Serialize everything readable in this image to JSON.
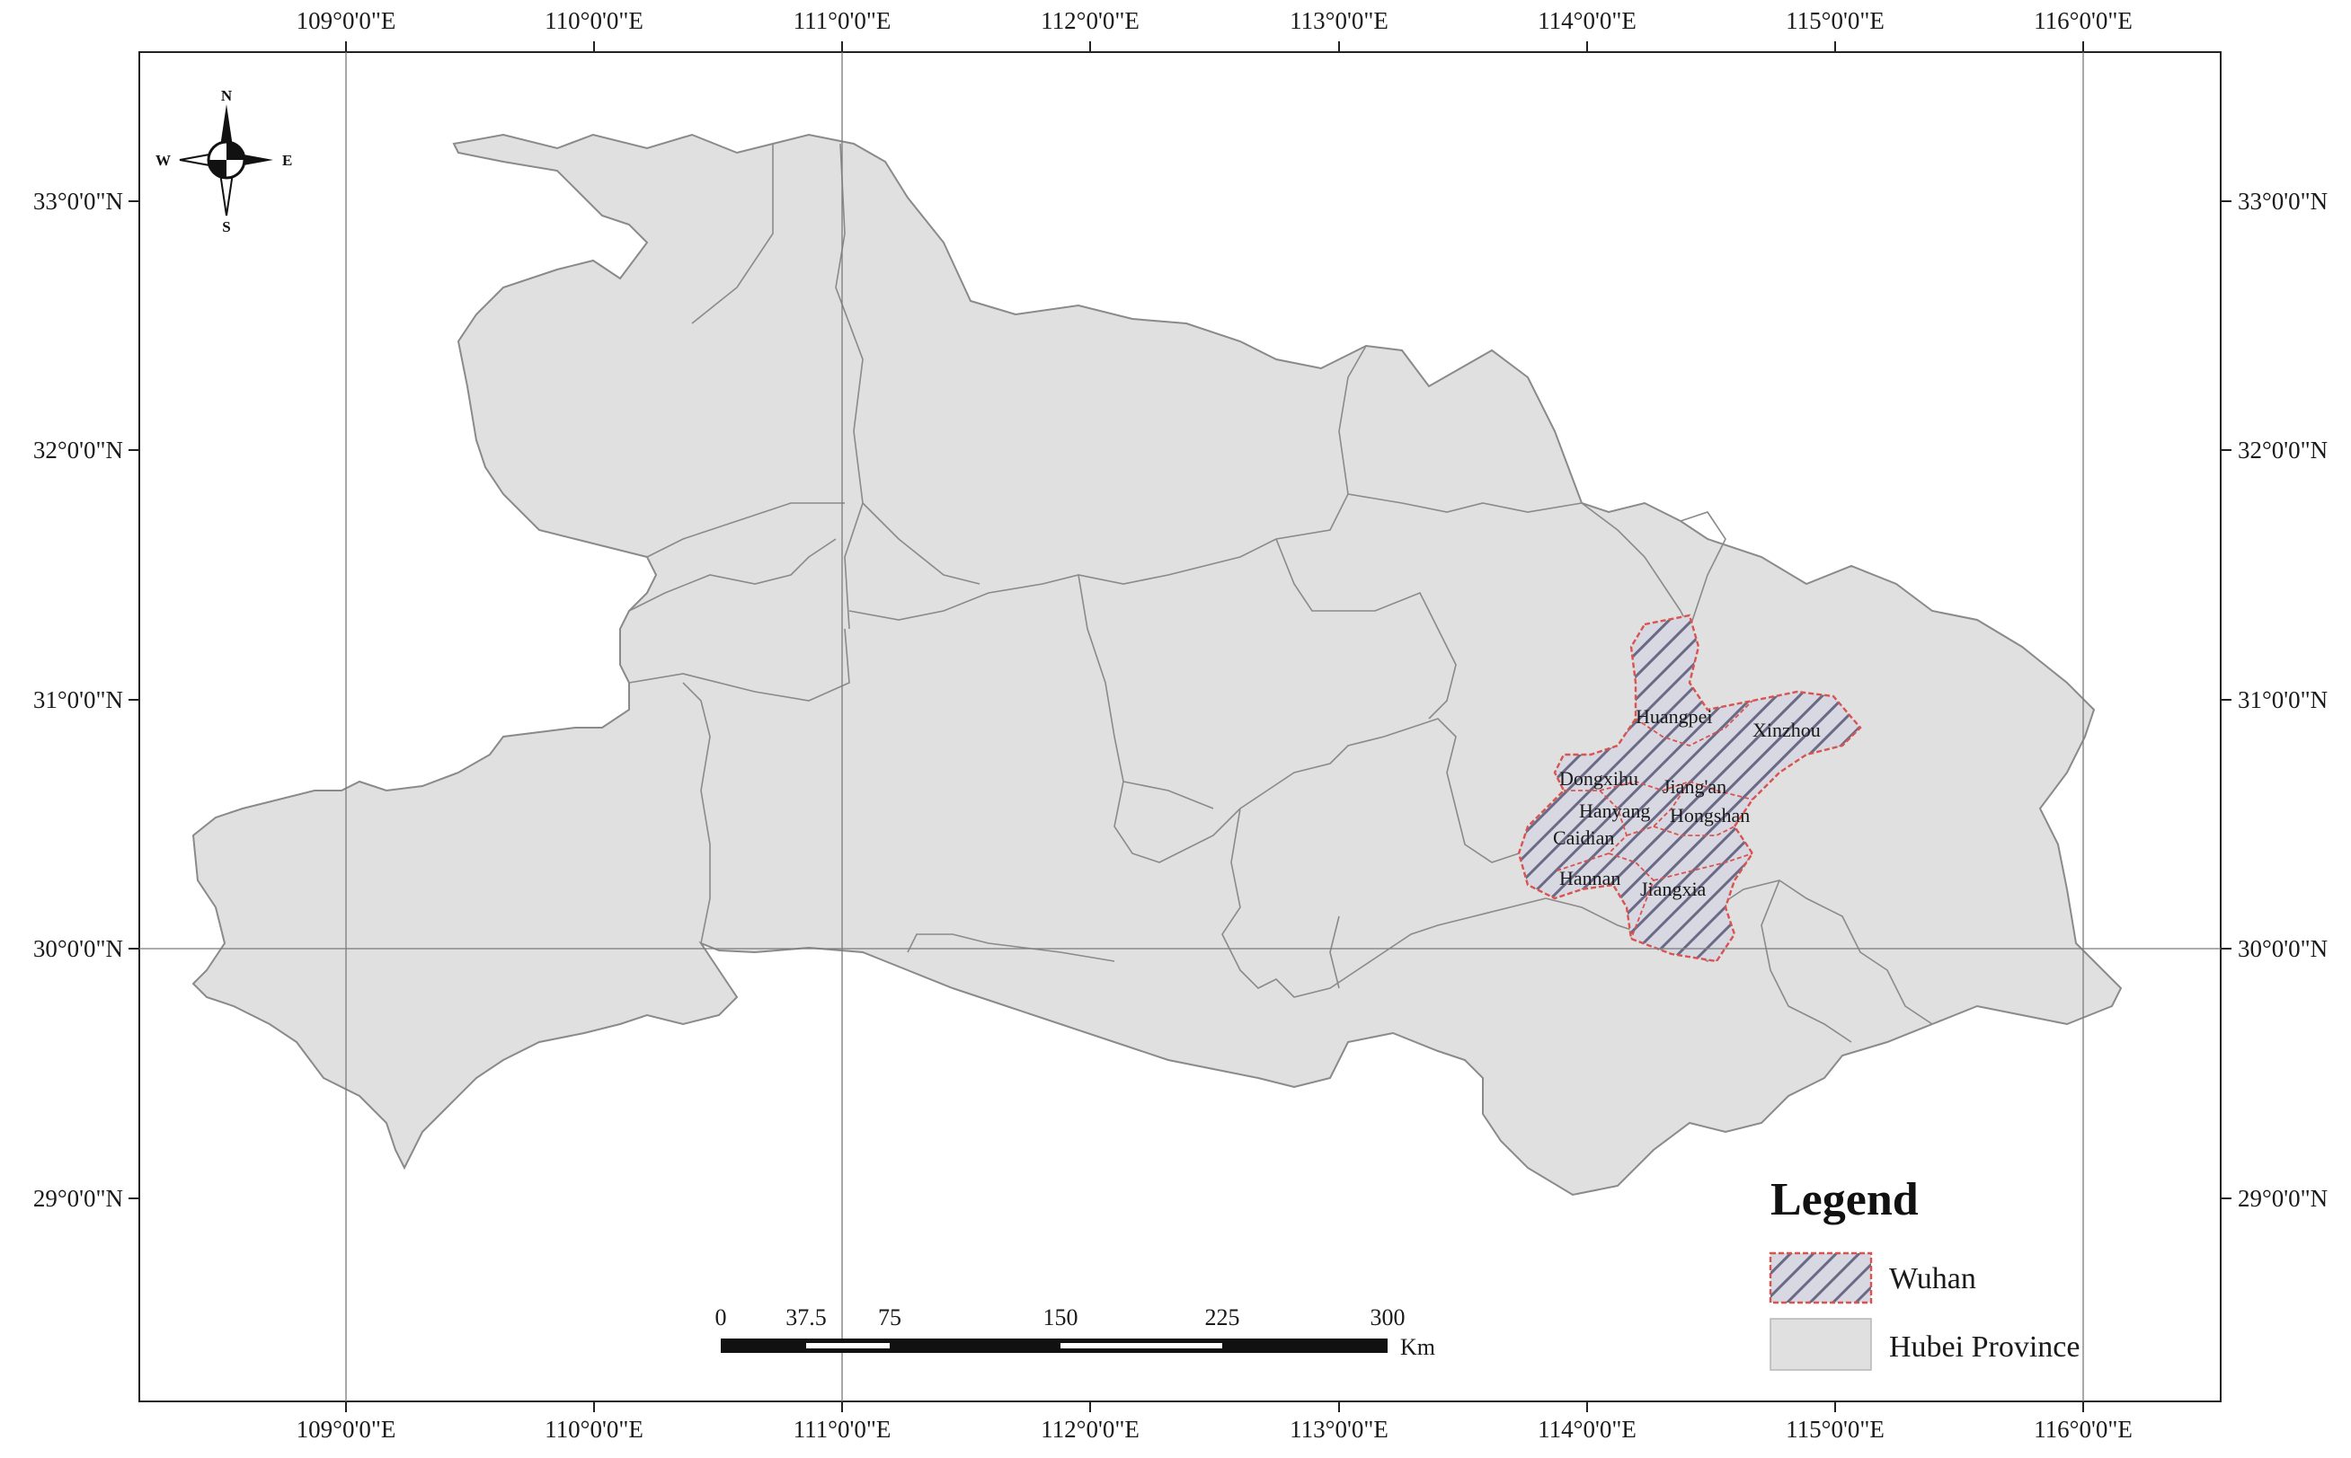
{
  "map": {
    "top_lon_labels": [
      "109°0'0\"E",
      "110°0'0\"E",
      "111°0'0\"E",
      "112°0'0\"E",
      "113°0'0\"E",
      "114°0'0\"E",
      "115°0'0\"E",
      "116°0'0\"E"
    ],
    "bottom_lon_labels": [
      "109°0'0\"E",
      "110°0'0\"E",
      "111°0'0\"E",
      "112°0'0\"E",
      "113°0'0\"E",
      "114°0'0\"E",
      "115°0'0\"E",
      "116°0'0\"E"
    ],
    "left_lat_labels": [
      "33°0'0\"N",
      "32°0'0\"N",
      "31°0'0\"N",
      "30°0'0\"N",
      "29°0'0\"N"
    ],
    "right_lat_labels": [
      "33°0'0\"N",
      "32°0'0\"N",
      "31°0'0\"N",
      "30°0'0\"N",
      "29°0'0\"N"
    ],
    "districts": [
      "Huangpei",
      "Xinzhou",
      "Dongxihu",
      "Jiang'an",
      "Hanyang",
      "Hongshan",
      "Caidian",
      "Hannan",
      "Jiangxia"
    ],
    "compass": {
      "n": "N",
      "s": "S",
      "e": "E",
      "w": "W"
    },
    "scale_bar": {
      "labels": [
        "0",
        "37.5",
        "75",
        "150",
        "225",
        "300"
      ],
      "unit": "Km"
    },
    "legend": {
      "title": "Legend",
      "items": [
        {
          "label": "Wuhan"
        },
        {
          "label": "Hubei Province"
        }
      ]
    },
    "colors": {
      "province_fill": "#e0e0e0",
      "wuhan_border": "#d9534f",
      "hatch": "#7a7a90",
      "frame": "#222222"
    }
  }
}
